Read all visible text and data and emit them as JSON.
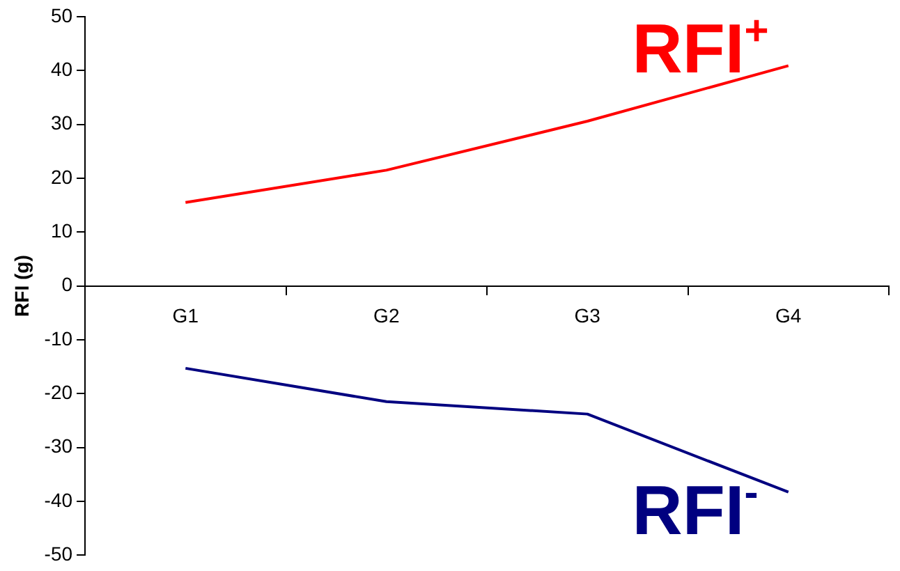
{
  "chart_data": {
    "type": "line",
    "ylabel": "RFI (g)",
    "categories": [
      "G1",
      "G2",
      "G3",
      "G4"
    ],
    "series": [
      {
        "name": "RFI$^{+}$",
        "color": "#ff0000",
        "values": [
          15.5,
          21.5,
          30.6,
          40.9
        ]
      },
      {
        "name": "RFI$^{-}$",
        "color": "#000080",
        "values": [
          -15.3,
          -21.5,
          -23.8,
          -38.3
        ]
      }
    ],
    "ylim": [
      -50,
      50
    ],
    "yticks": [
      -50,
      -40,
      -30,
      -20,
      -10,
      0,
      10,
      20,
      30,
      40,
      50
    ],
    "grid": false,
    "legend": false,
    "marker": "none",
    "line_style": "solid"
  }
}
